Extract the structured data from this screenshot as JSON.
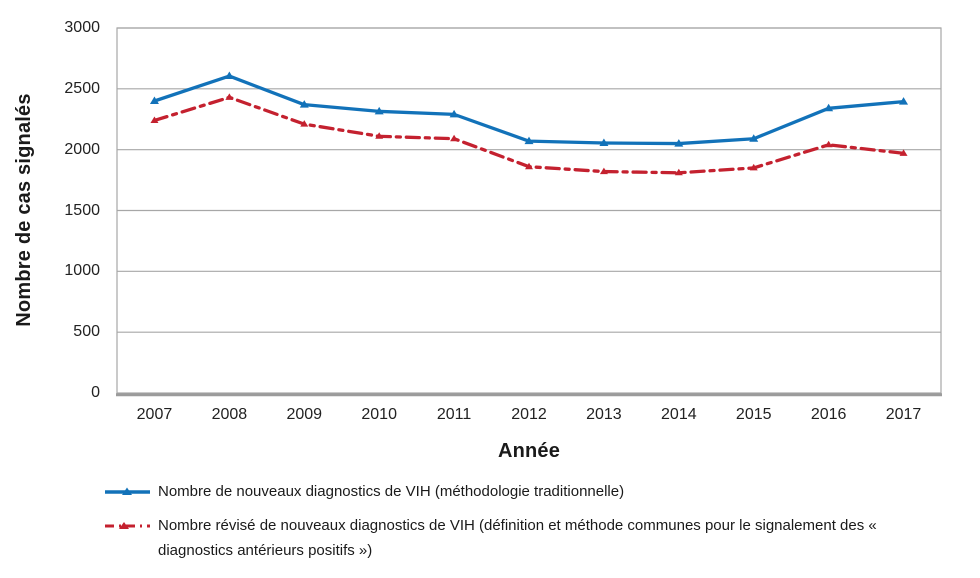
{
  "chart_data": {
    "type": "line",
    "title": "",
    "xlabel": "Année",
    "ylabel": "Nombre de cas signalés",
    "categories": [
      "2007",
      "2008",
      "2009",
      "2010",
      "2011",
      "2012",
      "2013",
      "2014",
      "2015",
      "2016",
      "2017"
    ],
    "series": [
      {
        "name": "Nombre de nouveaux diagnostics de VIH (méthodologie traditionnelle)",
        "color": "#1272B9",
        "line_style": "solid",
        "marker": "triangle",
        "values": [
          2400,
          2605,
          2370,
          2315,
          2290,
          2070,
          2055,
          2050,
          2090,
          2340,
          2395
        ]
      },
      {
        "name": "Nombre révisé de nouveaux diagnostics de VIH (définition et méthode communes pour le signalement des « diagnostics antérieurs positifs »)",
        "color": "#C4212F",
        "line_style": "dash-dot",
        "marker": "triangle",
        "values": [
          2240,
          2430,
          2210,
          2110,
          2090,
          1860,
          1820,
          1810,
          1850,
          2040,
          1970
        ]
      }
    ],
    "ylim": [
      0,
      3000
    ],
    "yticks": [
      0,
      500,
      1000,
      1500,
      2000,
      2500,
      3000
    ],
    "grid": true,
    "grid_color": "#A7A7A7",
    "axis_color": "#9B9B9B",
    "legend_position": "bottom"
  }
}
